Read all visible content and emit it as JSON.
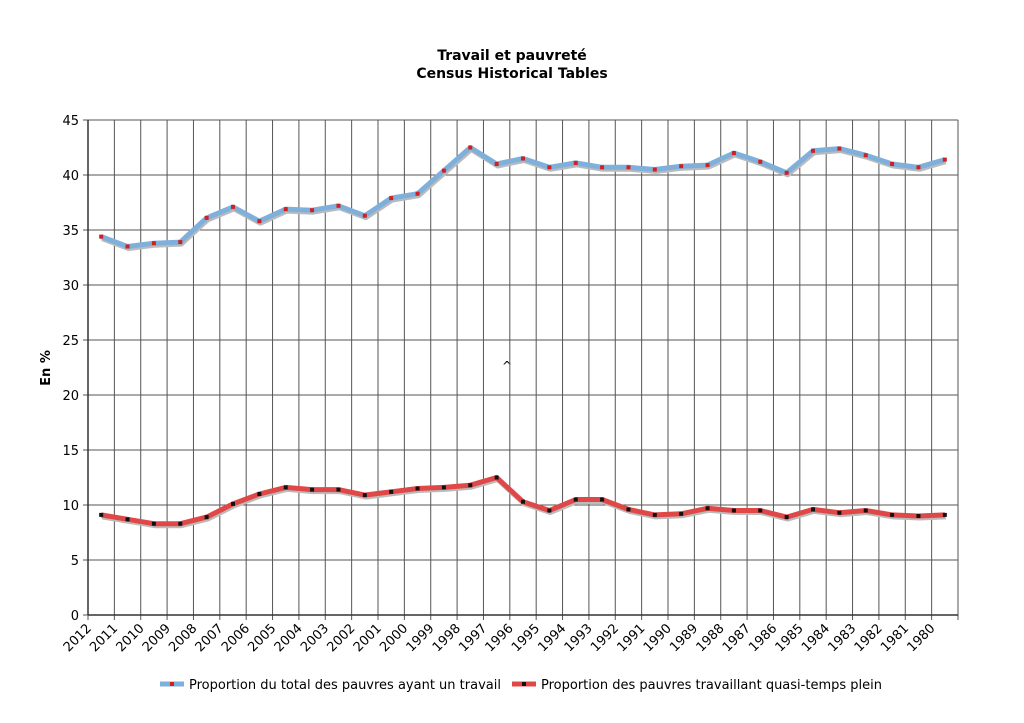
{
  "chart_data": {
    "type": "line",
    "title": "Travail et pauvreté",
    "subtitle": "Census Historical Tables",
    "xlabel": "",
    "ylabel": "En %",
    "ylim": [
      0,
      45
    ],
    "yticks": [
      0,
      5,
      10,
      15,
      20,
      25,
      30,
      35,
      40,
      45
    ],
    "grid": true,
    "legend_position": "bottom",
    "annotation": "^",
    "categories": [
      "2012",
      "2011",
      "2010",
      "2009",
      "2008",
      "2007",
      "2006",
      "2005",
      "2004",
      "2003",
      "2002",
      "2001",
      "2000",
      "1999",
      "1998",
      "1997",
      "1996",
      "1995",
      "1994",
      "1993",
      "1992",
      "1991",
      "1990",
      "1989",
      "1988",
      "1987",
      "1986",
      "1985",
      "1984",
      "1983",
      "1982",
      "1981",
      "1980"
    ],
    "series": [
      {
        "name": "Proportion du total des pauvres ayant un travail",
        "color": "#7fb0dc",
        "marker_color": "#d02020",
        "values": [
          34.4,
          33.5,
          33.8,
          33.9,
          36.1,
          37.1,
          35.8,
          36.9,
          36.8,
          37.2,
          36.3,
          37.9,
          38.3,
          40.4,
          42.5,
          41.0,
          41.5,
          40.7,
          41.1,
          40.7,
          40.7,
          40.5,
          40.8,
          40.9,
          42.0,
          41.2,
          40.2,
          42.2,
          42.4,
          41.8,
          41.0,
          40.7,
          41.4
        ]
      },
      {
        "name": "Proportion des pauvres travaillant quasi-temps plein",
        "color": "#e04848",
        "marker_color": "#111111",
        "values": [
          9.1,
          8.7,
          8.3,
          8.3,
          8.9,
          10.1,
          11.0,
          11.6,
          11.4,
          11.4,
          10.9,
          11.2,
          11.5,
          11.6,
          11.8,
          12.5,
          10.3,
          9.5,
          10.5,
          10.5,
          9.6,
          9.1,
          9.2,
          9.7,
          9.5,
          9.5,
          8.9,
          9.6,
          9.3,
          9.5,
          9.1,
          9.0,
          9.1
        ]
      }
    ]
  }
}
